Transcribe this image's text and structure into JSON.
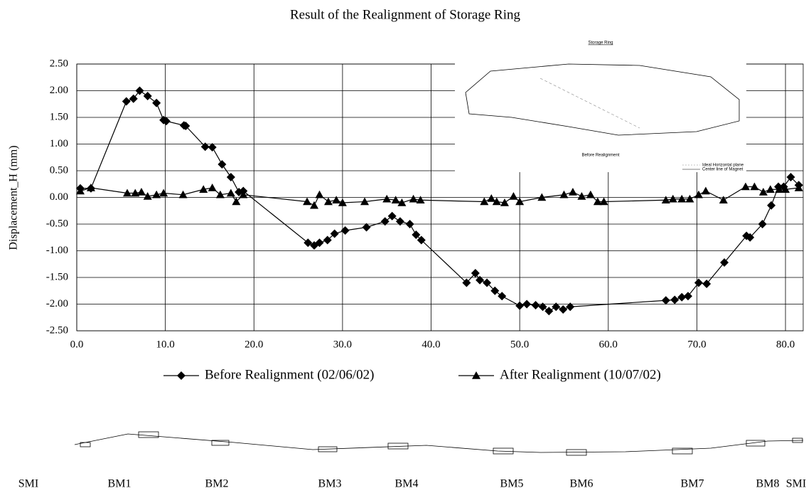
{
  "chart_data": {
    "type": "line",
    "title": "Result of the Realignment of Storage Ring",
    "y_label": "Displacement_H (mm)",
    "xlim": [
      0,
      82
    ],
    "ylim": [
      -2.5,
      2.5
    ],
    "xticks": [
      {
        "value": 0,
        "label": "0.0"
      },
      {
        "value": 10,
        "label": "10.0"
      },
      {
        "value": 20,
        "label": "20.0"
      },
      {
        "value": 30,
        "label": "30.0"
      },
      {
        "value": 40,
        "label": "40.0"
      },
      {
        "value": 50,
        "label": "50.0"
      },
      {
        "value": 60,
        "label": "60.0"
      },
      {
        "value": 70,
        "label": "70.0"
      },
      {
        "value": 80,
        "label": "80.0"
      }
    ],
    "yticks": [
      {
        "value": 2.5,
        "label": "2.50"
      },
      {
        "value": 2,
        "label": "2.00"
      },
      {
        "value": 1.5,
        "label": "1.50"
      },
      {
        "value": 1,
        "label": "1.00"
      },
      {
        "value": 0.5,
        "label": "0.50"
      },
      {
        "value": 0,
        "label": "0.00"
      },
      {
        "value": -0.5,
        "label": "-0.50"
      },
      {
        "value": -1,
        "label": "-1.00"
      },
      {
        "value": -1.5,
        "label": "-1.50"
      },
      {
        "value": -2,
        "label": "-2.00"
      },
      {
        "value": -2.5,
        "label": "-2.50"
      }
    ],
    "grid": true,
    "series": [
      {
        "name": "Before Realignment (02/06/02)",
        "color": "#000000",
        "marker": "diamond",
        "x": [
          0.4,
          1.6,
          5.6,
          6.4,
          7.1,
          8.0,
          9.0,
          9.8,
          10.1,
          12.1,
          12.3,
          14.5,
          15.3,
          16.4,
          17.4,
          18.3,
          18.8,
          26.1,
          26.8,
          27.4,
          28.3,
          29.1,
          30.3,
          32.7,
          34.8,
          35.6,
          36.5,
          37.6,
          38.3,
          38.9,
          44.0,
          45.0,
          45.5,
          46.3,
          47.2,
          48.0,
          50.0,
          50.8,
          51.8,
          52.6,
          53.3,
          54.1,
          54.9,
          55.7,
          66.5,
          67.5,
          68.3,
          69.0,
          70.2,
          71.1,
          73.1,
          75.6,
          76.0,
          77.4,
          78.4,
          79.2,
          79.8,
          80.6,
          81.5
        ],
        "values": [
          0.17,
          0.17,
          1.8,
          1.85,
          2.0,
          1.9,
          1.77,
          1.45,
          1.43,
          1.35,
          1.34,
          0.95,
          0.94,
          0.62,
          0.38,
          0.1,
          0.12,
          -0.85,
          -0.9,
          -0.85,
          -0.8,
          -0.68,
          -0.62,
          -0.56,
          -0.45,
          -0.35,
          -0.45,
          -0.5,
          -0.7,
          -0.8,
          -1.6,
          -1.42,
          -1.55,
          -1.6,
          -1.75,
          -1.85,
          -2.03,
          -2.0,
          -2.02,
          -2.05,
          -2.13,
          -2.05,
          -2.1,
          -2.05,
          -1.93,
          -1.92,
          -1.87,
          -1.85,
          -1.6,
          -1.62,
          -1.22,
          -0.72,
          -0.75,
          -0.5,
          -0.15,
          0.2,
          0.2,
          0.38,
          0.23
        ]
      },
      {
        "name": "After Realignment (10/07/02)",
        "color": "#000000",
        "marker": "triangle",
        "x": [
          0.4,
          1.6,
          5.7,
          6.6,
          7.3,
          8.0,
          9.0,
          9.8,
          12.0,
          14.3,
          15.3,
          16.2,
          17.4,
          18.0,
          18.8,
          26.0,
          26.8,
          27.4,
          28.4,
          29.3,
          30.0,
          32.5,
          35.0,
          36.0,
          36.7,
          38.0,
          38.8,
          46.0,
          46.8,
          47.4,
          48.3,
          49.3,
          50.0,
          52.5,
          55.0,
          56.0,
          57.0,
          58.0,
          58.8,
          59.5,
          66.5,
          67.3,
          68.3,
          69.2,
          70.2,
          71.0,
          73.0,
          75.5,
          76.5,
          77.5,
          78.3,
          79.3,
          80.0,
          81.5
        ],
        "values": [
          0.12,
          0.18,
          0.08,
          0.08,
          0.1,
          0.02,
          0.05,
          0.08,
          0.05,
          0.15,
          0.18,
          0.05,
          0.08,
          -0.08,
          0.05,
          -0.08,
          -0.15,
          0.05,
          -0.08,
          -0.05,
          -0.1,
          -0.08,
          -0.03,
          -0.05,
          -0.1,
          -0.03,
          -0.05,
          -0.08,
          -0.02,
          -0.08,
          -0.1,
          0.02,
          -0.08,
          0.0,
          0.05,
          0.1,
          0.02,
          0.05,
          -0.08,
          -0.08,
          -0.05,
          -0.03,
          -0.03,
          -0.03,
          0.05,
          0.12,
          -0.05,
          0.2,
          0.2,
          0.1,
          0.15,
          0.15,
          0.15,
          0.18
        ]
      }
    ],
    "inset": {
      "title": "Storage Ring",
      "caption": "Before Realignment",
      "legend": [
        "Ideal Horizontal plane",
        "Center line of Magnet"
      ]
    },
    "magnet_labels": [
      "SMI",
      "BM1",
      "BM2",
      "BM3",
      "BM4",
      "BM5",
      "BM6",
      "BM7",
      "BM8",
      "SMI"
    ]
  }
}
